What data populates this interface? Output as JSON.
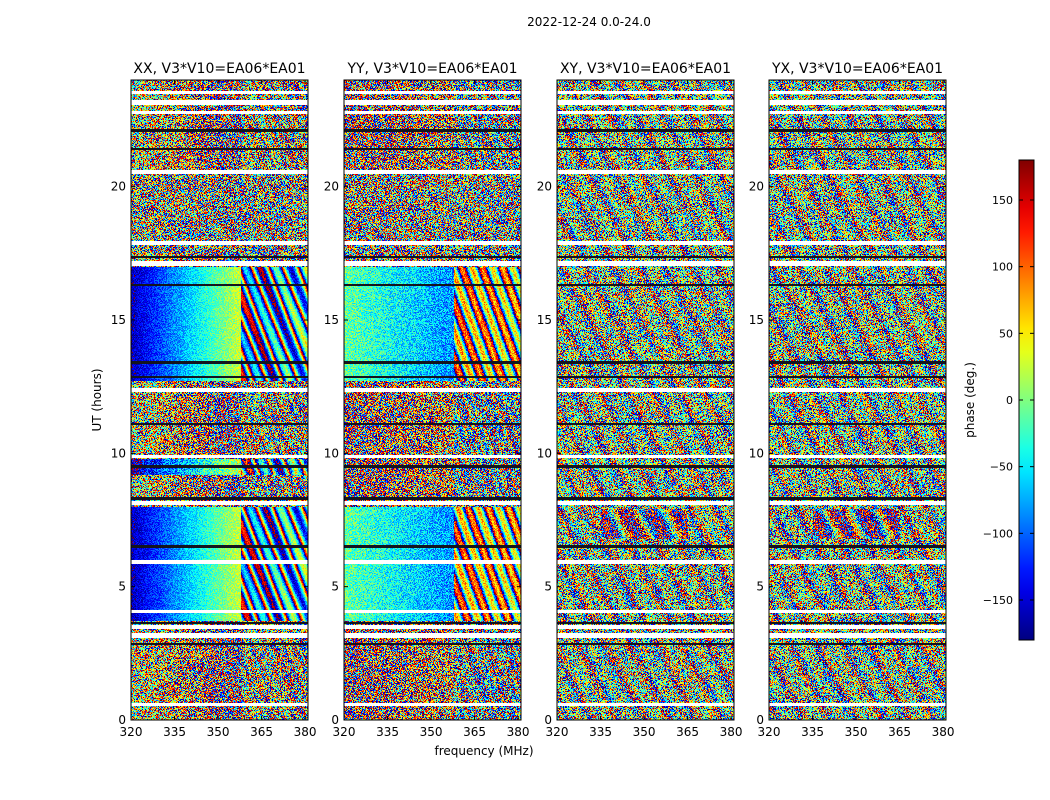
{
  "suptitle": "2022-12-24 0.0-24.0",
  "chart_data": {
    "type": "heatmap",
    "xlabel": "frequency (MHz)",
    "ylabel": "UT (hours)",
    "xlim": [
      320,
      381
    ],
    "ylim": [
      0,
      24
    ],
    "xticks": [
      320,
      335,
      350,
      365,
      380
    ],
    "yticks": [
      0,
      5,
      10,
      15,
      20
    ],
    "panels": [
      {
        "title": "XX, V3*V10=EA06*EA01",
        "pol": "XX"
      },
      {
        "title": "YY, V3*V10=EA06*EA01",
        "pol": "YY"
      },
      {
        "title": "XY, V3*V10=EA06*EA01",
        "pol": "XY"
      },
      {
        "title": "YX, V3*V10=EA06*EA01",
        "pol": "YX"
      }
    ],
    "colorbar": {
      "label": "phase (deg.)",
      "range": [
        -180,
        180
      ],
      "ticks": [
        -150,
        -100,
        -50,
        0,
        50,
        100,
        150
      ],
      "colormap": "jet"
    }
  }
}
